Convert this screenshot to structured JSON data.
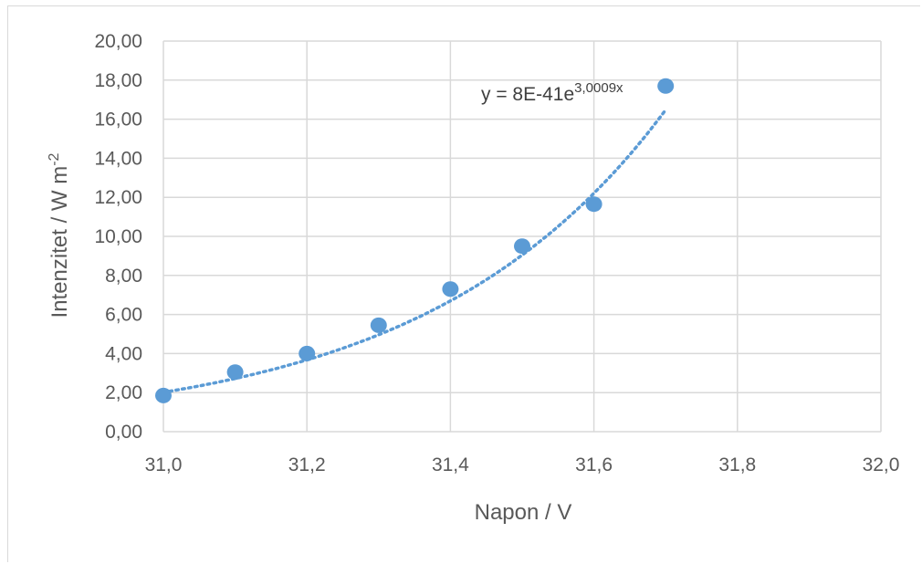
{
  "chart_data": {
    "type": "scatter",
    "title": "",
    "xlabel": "Napon / V",
    "ylabel": "Intenzitet  / W m",
    "ylabel_sup": "-2",
    "xlim": [
      31.0,
      32.0
    ],
    "ylim": [
      0,
      20
    ],
    "x_ticks": [
      "31,0",
      "31,2",
      "31,4",
      "31,6",
      "31,8",
      "32,0"
    ],
    "y_ticks": [
      "0,00",
      "2,00",
      "4,00",
      "6,00",
      "8,00",
      "10,00",
      "12,00",
      "14,00",
      "16,00",
      "18,00",
      "20,00"
    ],
    "grid": true,
    "series": [
      {
        "x": [
          31.0,
          31.1,
          31.2,
          31.3,
          31.4,
          31.5,
          31.6,
          31.7
        ],
        "y": [
          1.85,
          3.05,
          4.0,
          5.45,
          7.3,
          9.5,
          11.65,
          17.7
        ]
      }
    ],
    "trendline": {
      "type": "exponential",
      "label": "y = 8E-41e",
      "label_sup": "3,0009x",
      "a": 8e-41,
      "b": 3.0009,
      "x_range": [
        31.0,
        31.7
      ]
    },
    "colors": {
      "marker": "#5b9bd5",
      "trendline": "#5b9bd5",
      "grid": "#d9d9d9",
      "text": "#595959"
    }
  }
}
